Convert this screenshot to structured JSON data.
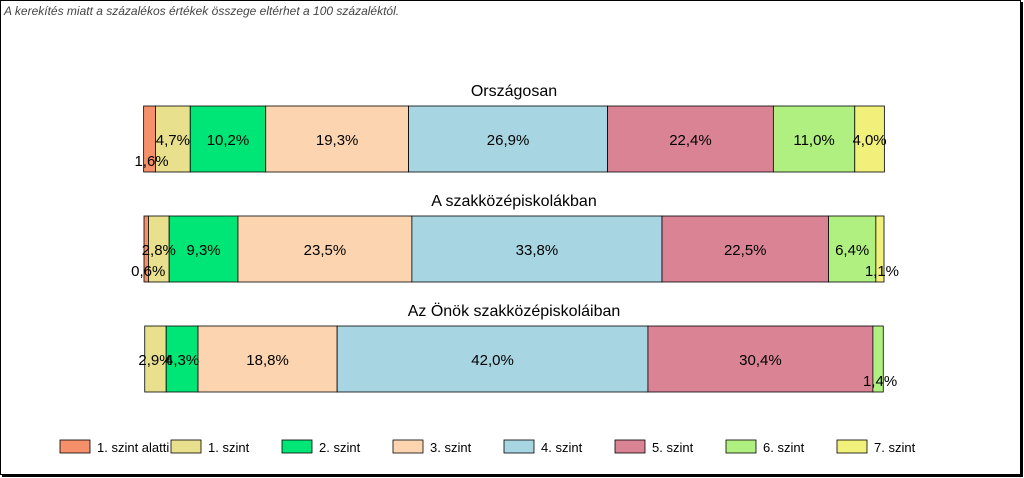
{
  "note": "A kerekítés miatt a  százalékos értékek összege eltérhet a 100 százaléktól.",
  "chart_data": {
    "type": "bar",
    "orientation": "horizontal-stacked-100",
    "categories": [
      "1. szint alatti",
      "1. szint",
      "2. szint",
      "3. szint",
      "4. szint",
      "5. szint",
      "6. szint",
      "7. szint"
    ],
    "colors": [
      "#F4906A",
      "#E8E08C",
      "#00E676",
      "#FCD5B0",
      "#A8D5E2",
      "#D98395",
      "#B0F080",
      "#F0F07A"
    ],
    "legend": "bottom",
    "series": [
      {
        "name": "Országosan",
        "values": [
          1.6,
          4.7,
          10.2,
          19.3,
          26.9,
          22.4,
          11.0,
          4.0
        ],
        "labels": [
          "1,6%",
          "4,7%",
          "10,2%",
          "19,3%",
          "26,9%",
          "22,4%",
          "11,0%",
          "4,0%"
        ]
      },
      {
        "name": "A szakközépiskolákban",
        "values": [
          0.6,
          2.8,
          9.3,
          23.5,
          33.8,
          22.5,
          6.4,
          1.1
        ],
        "labels": [
          "0,6%",
          "2,8%",
          "9,3%",
          "23,5%",
          "33,8%",
          "22,5%",
          "6,4%",
          "1,1%"
        ]
      },
      {
        "name": "Az Önök szakközépiskoláiban",
        "values": [
          0.0,
          2.9,
          4.3,
          18.8,
          42.0,
          30.4,
          1.4,
          0.0
        ],
        "labels": [
          "",
          "2,9%",
          "4,3%",
          "18,8%",
          "42,0%",
          "30,4%",
          "1,4%",
          ""
        ]
      }
    ]
  }
}
